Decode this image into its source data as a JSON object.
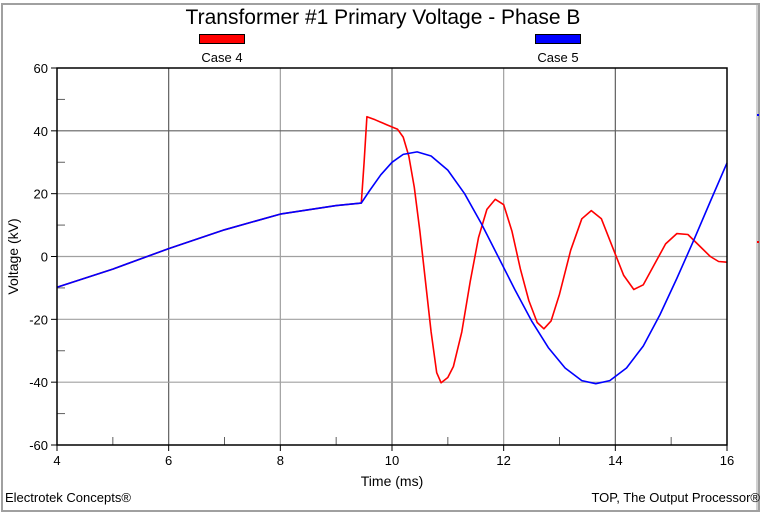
{
  "chart_data": {
    "type": "line",
    "title": "Transformer #1 Primary Voltage - Phase B",
    "xlabel": "Time (ms)",
    "ylabel": "Voltage (kV)",
    "xlim": [
      4,
      16
    ],
    "ylim": [
      -60,
      60
    ],
    "xticks": [
      4,
      6,
      8,
      10,
      12,
      14,
      16
    ],
    "yticks": [
      60,
      40,
      20,
      0,
      -20,
      -40,
      -60
    ],
    "grid": true,
    "legend_position": "top",
    "series": [
      {
        "name": "Case 4",
        "color": "#ff0000",
        "points": [
          [
            4.0,
            -9.8
          ],
          [
            5.0,
            -4.0
          ],
          [
            6.0,
            2.5
          ],
          [
            7.0,
            8.5
          ],
          [
            8.0,
            13.5
          ],
          [
            9.0,
            16.2
          ],
          [
            9.45,
            17.0
          ],
          [
            9.5,
            30.0
          ],
          [
            9.55,
            44.5
          ],
          [
            9.7,
            43.5
          ],
          [
            9.9,
            42.0
          ],
          [
            10.1,
            40.5
          ],
          [
            10.2,
            38.0
          ],
          [
            10.3,
            32.0
          ],
          [
            10.4,
            22.0
          ],
          [
            10.5,
            8.0
          ],
          [
            10.6,
            -8.0
          ],
          [
            10.7,
            -24.0
          ],
          [
            10.8,
            -37.0
          ],
          [
            10.88,
            -40.2
          ],
          [
            11.0,
            -38.5
          ],
          [
            11.1,
            -35.0
          ],
          [
            11.25,
            -24.0
          ],
          [
            11.4,
            -8.0
          ],
          [
            11.55,
            6.0
          ],
          [
            11.7,
            15.0
          ],
          [
            11.85,
            18.2
          ],
          [
            12.0,
            16.5
          ],
          [
            12.15,
            8.0
          ],
          [
            12.3,
            -4.0
          ],
          [
            12.45,
            -14.0
          ],
          [
            12.6,
            -21.0
          ],
          [
            12.72,
            -23.0
          ],
          [
            12.85,
            -20.5
          ],
          [
            13.0,
            -12.0
          ],
          [
            13.2,
            2.0
          ],
          [
            13.4,
            12.0
          ],
          [
            13.57,
            14.6
          ],
          [
            13.75,
            12.0
          ],
          [
            13.95,
            3.0
          ],
          [
            14.15,
            -6.0
          ],
          [
            14.33,
            -10.5
          ],
          [
            14.5,
            -9.0
          ],
          [
            14.7,
            -2.5
          ],
          [
            14.9,
            4.0
          ],
          [
            15.1,
            7.3
          ],
          [
            15.3,
            7.0
          ],
          [
            15.5,
            3.5
          ],
          [
            15.7,
            0.0
          ],
          [
            15.85,
            -1.6
          ],
          [
            16.0,
            -1.8
          ]
        ]
      },
      {
        "name": "Case 5",
        "color": "#0000ff",
        "points": [
          [
            4.0,
            -9.8
          ],
          [
            5.0,
            -4.0
          ],
          [
            6.0,
            2.5
          ],
          [
            7.0,
            8.5
          ],
          [
            8.0,
            13.5
          ],
          [
            9.0,
            16.2
          ],
          [
            9.45,
            17.0
          ],
          [
            9.6,
            21.0
          ],
          [
            9.8,
            26.0
          ],
          [
            10.0,
            30.0
          ],
          [
            10.2,
            32.5
          ],
          [
            10.45,
            33.3
          ],
          [
            10.7,
            32.0
          ],
          [
            11.0,
            27.5
          ],
          [
            11.3,
            20.0
          ],
          [
            11.6,
            10.5
          ],
          [
            11.9,
            0.0
          ],
          [
            12.2,
            -10.5
          ],
          [
            12.5,
            -20.5
          ],
          [
            12.8,
            -29.0
          ],
          [
            13.1,
            -35.5
          ],
          [
            13.4,
            -39.5
          ],
          [
            13.65,
            -40.5
          ],
          [
            13.9,
            -39.5
          ],
          [
            14.2,
            -35.5
          ],
          [
            14.5,
            -28.5
          ],
          [
            14.8,
            -18.5
          ],
          [
            15.1,
            -7.0
          ],
          [
            15.4,
            5.0
          ],
          [
            15.7,
            17.5
          ],
          [
            16.0,
            29.8
          ]
        ]
      }
    ]
  },
  "legend": [
    {
      "label": "Case 4",
      "color": "#ff0000"
    },
    {
      "label": "Case 5",
      "color": "#0000ff"
    }
  ],
  "footer": {
    "left": "Electrotek Concepts®",
    "right": "TOP, The Output Processor®"
  }
}
